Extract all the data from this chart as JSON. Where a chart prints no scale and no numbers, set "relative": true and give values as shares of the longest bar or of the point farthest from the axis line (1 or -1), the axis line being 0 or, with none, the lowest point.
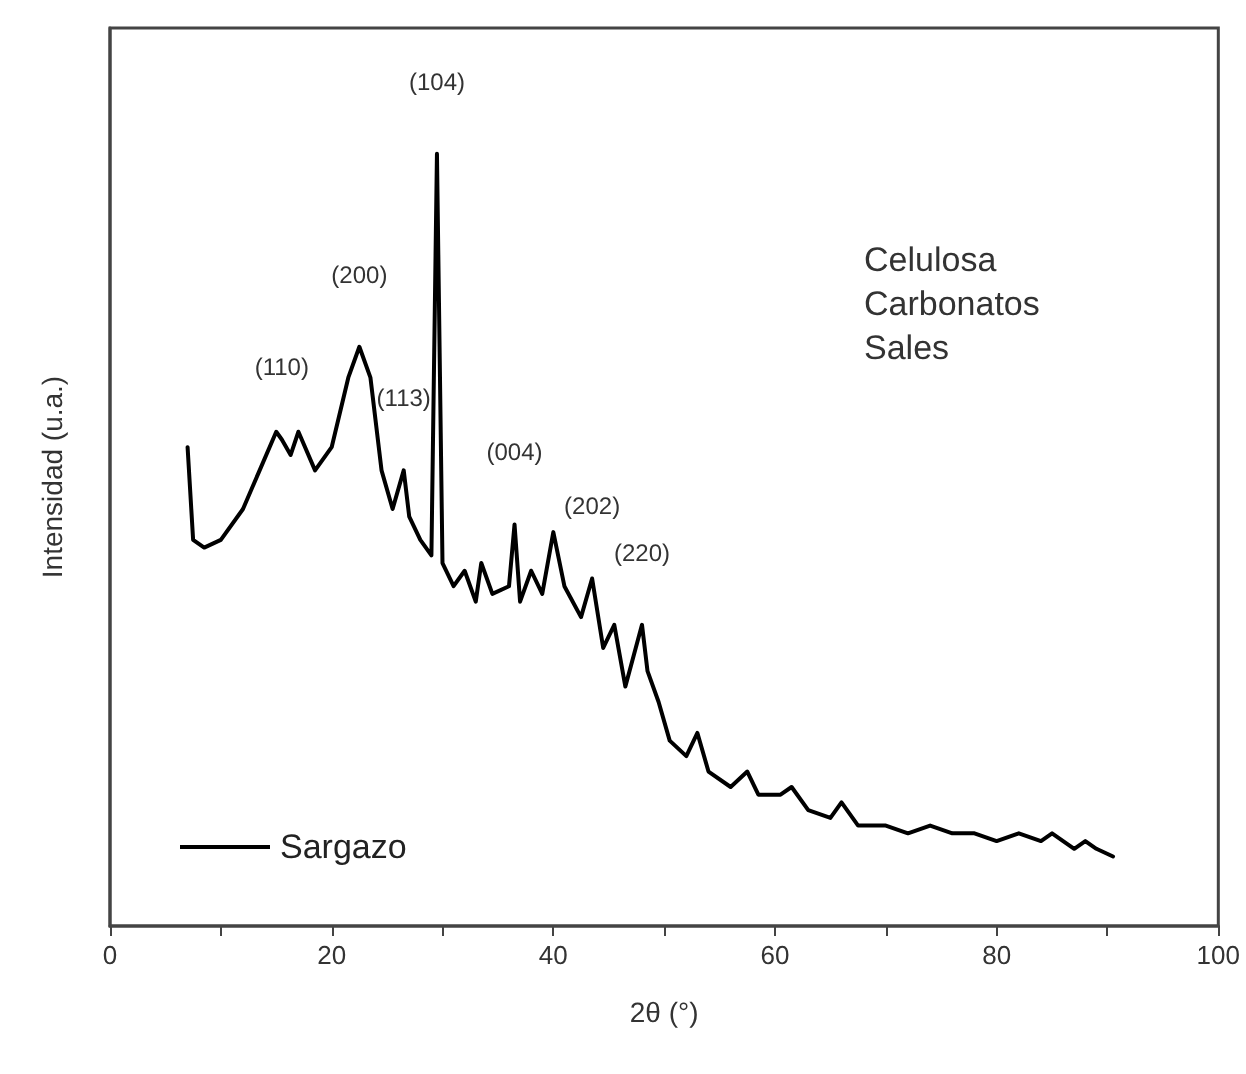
{
  "chart_data": {
    "type": "line",
    "xlabel": "2θ (°)",
    "ylabel": "Intensidad (u.a.)",
    "relative": true,
    "grid": false,
    "legend": "bottom left",
    "marker": "none",
    "line_style": "solid",
    "xlim": [
      0,
      100
    ],
    "xticks": [
      0,
      {
        "value": 10,
        "label": null
      },
      20,
      {
        "value": 30,
        "label": null
      },
      40,
      {
        "value": 50,
        "label": null
      },
      60,
      {
        "value": 70,
        "label": null
      },
      80,
      {
        "value": 90,
        "label": null
      },
      100
    ],
    "series": [
      {
        "name": "Sargazo",
        "color": "#000000",
        "x": [
          7,
          7.5,
          8.5,
          10,
          12,
          13.5,
          15,
          15.5,
          16.3,
          17,
          18.5,
          20,
          21.5,
          22.5,
          23.5,
          24.5,
          25.5,
          26.5,
          27,
          28,
          29,
          29.5,
          30,
          31,
          32,
          33,
          33.5,
          34.5,
          36,
          36.5,
          37,
          38,
          39,
          40,
          41,
          42.5,
          43.5,
          44.5,
          45.5,
          46.5,
          48,
          48.5,
          49.5,
          50.5,
          52,
          53,
          54,
          56,
          57.5,
          58.5,
          60.5,
          61.5,
          63,
          65,
          66,
          67.5,
          70,
          72,
          74,
          76,
          78,
          80,
          82,
          84,
          85,
          87,
          88,
          89,
          90.5
        ],
        "values": [
          0.62,
          0.5,
          0.49,
          0.5,
          0.54,
          0.59,
          0.64,
          0.63,
          0.61,
          0.64,
          0.59,
          0.62,
          0.71,
          0.75,
          0.71,
          0.59,
          0.54,
          0.59,
          0.53,
          0.5,
          0.48,
          1.0,
          0.47,
          0.44,
          0.46,
          0.42,
          0.47,
          0.43,
          0.44,
          0.52,
          0.42,
          0.46,
          0.43,
          0.51,
          0.44,
          0.4,
          0.45,
          0.36,
          0.39,
          0.31,
          0.39,
          0.33,
          0.29,
          0.24,
          0.22,
          0.25,
          0.2,
          0.18,
          0.2,
          0.17,
          0.17,
          0.18,
          0.15,
          0.14,
          0.16,
          0.13,
          0.13,
          0.12,
          0.13,
          0.12,
          0.12,
          0.11,
          0.12,
          0.11,
          0.12,
          0.1,
          0.11,
          0.1,
          0.09
        ]
      }
    ],
    "annotations": [
      {
        "text": "(110)",
        "x": 15.5,
        "y": 0.63
      },
      {
        "text": "(200)",
        "x": 22.5,
        "y": 0.75
      },
      {
        "text": "(113)",
        "x": 26.5,
        "y": 0.59
      },
      {
        "text": "(104)",
        "x": 29.5,
        "y": 1.0
      },
      {
        "text": "(004)",
        "x": 36.5,
        "y": 0.52
      },
      {
        "text": "(202)",
        "x": 43.5,
        "y": 0.45
      },
      {
        "text": "(220)",
        "x": 48,
        "y": 0.39
      },
      "Celulosa",
      "Carbonatos",
      "Sales"
    ]
  }
}
